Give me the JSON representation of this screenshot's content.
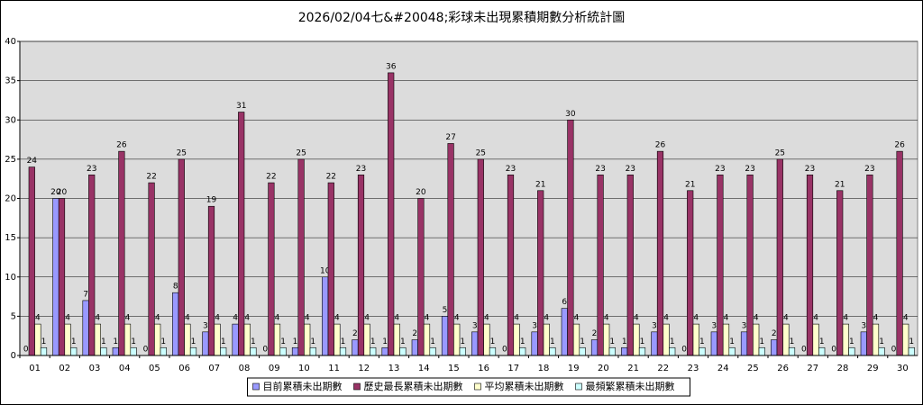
{
  "chart_data": {
    "type": "bar",
    "title": "2026/02/04七&#20048;彩球未出現累積期數分析統計圖",
    "categories": [
      "01",
      "02",
      "03",
      "04",
      "05",
      "06",
      "07",
      "08",
      "09",
      "10",
      "11",
      "12",
      "13",
      "14",
      "15",
      "16",
      "17",
      "18",
      "19",
      "20",
      "21",
      "22",
      "23",
      "24",
      "25",
      "26",
      "27",
      "28",
      "29",
      "30"
    ],
    "series": [
      {
        "name": "目前累積未出期數",
        "color": "#9999ff",
        "values": [
          0,
          20,
          7,
          1,
          0,
          8,
          3,
          4,
          0,
          1,
          10,
          2,
          1,
          2,
          5,
          3,
          0,
          3,
          6,
          2,
          1,
          3,
          0,
          3,
          3,
          2,
          0,
          0,
          3,
          0
        ]
      },
      {
        "name": "歷史最長累積未出期數",
        "color": "#993366",
        "values": [
          24,
          20,
          23,
          26,
          22,
          25,
          19,
          31,
          22,
          25,
          22,
          23,
          36,
          20,
          27,
          25,
          23,
          21,
          30,
          23,
          23,
          26,
          21,
          23,
          23,
          25,
          23,
          21,
          23,
          26
        ]
      },
      {
        "name": "平均累積未出期數",
        "color": "#ffffcc",
        "values": [
          4,
          4,
          4,
          4,
          4,
          4,
          4,
          4,
          4,
          4,
          4,
          4,
          4,
          4,
          4,
          4,
          4,
          4,
          4,
          4,
          4,
          4,
          4,
          4,
          4,
          4,
          4,
          4,
          4,
          4
        ]
      },
      {
        "name": "最頻繁累積未出期數",
        "color": "#ccffff",
        "values": [
          1,
          1,
          1,
          1,
          1,
          1,
          1,
          1,
          1,
          1,
          1,
          1,
          1,
          1,
          1,
          1,
          1,
          1,
          1,
          1,
          1,
          1,
          1,
          1,
          1,
          1,
          1,
          1,
          1,
          1
        ]
      }
    ],
    "ylim": [
      0,
      40
    ],
    "yticks": [
      0,
      5,
      10,
      15,
      20,
      25,
      30,
      35,
      40
    ],
    "grid": true,
    "legend": "bottom"
  }
}
